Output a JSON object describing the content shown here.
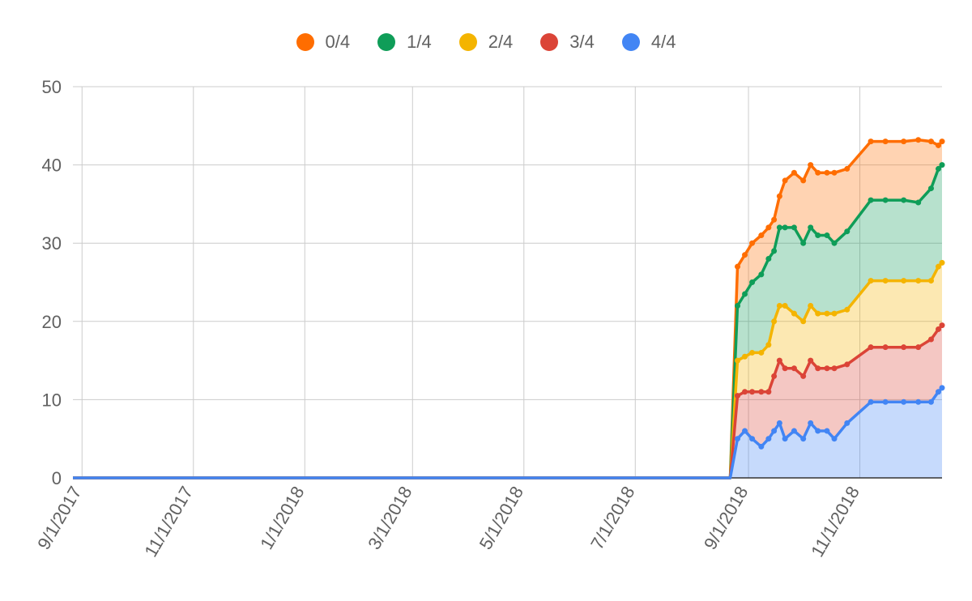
{
  "chart_data": {
    "type": "area",
    "stacked": true,
    "title": "",
    "xlabel": "",
    "ylabel": "",
    "ylim": [
      0,
      50
    ],
    "yticks": [
      0,
      10,
      20,
      30,
      40,
      50
    ],
    "xlim": [
      "2017-08-27",
      "2018-12-16"
    ],
    "xticks": [
      "2017-09-01",
      "2017-11-01",
      "2018-01-01",
      "2018-03-01",
      "2018-05-01",
      "2018-07-01",
      "2018-09-01",
      "2018-11-01"
    ],
    "xtick_labels": [
      "9/1/2017",
      "11/1/2017",
      "1/1/2018",
      "3/1/2018",
      "5/1/2018",
      "7/1/2018",
      "9/1/2018",
      "11/1/2018"
    ],
    "grid": true,
    "legend_position": "top",
    "x": [
      "2017-08-27",
      "2018-08-22",
      "2018-08-26",
      "2018-08-30",
      "2018-09-03",
      "2018-09-08",
      "2018-09-12",
      "2018-09-15",
      "2018-09-18",
      "2018-09-21",
      "2018-09-26",
      "2018-10-01",
      "2018-10-05",
      "2018-10-09",
      "2018-10-14",
      "2018-10-18",
      "2018-10-25",
      "2018-11-07",
      "2018-11-15",
      "2018-11-25",
      "2018-12-03",
      "2018-12-10",
      "2018-12-14",
      "2018-12-16"
    ],
    "series": [
      {
        "name": "4/4",
        "color": "#4285f4",
        "values": [
          0,
          0,
          5,
          6,
          5,
          4,
          5,
          6,
          7,
          5,
          6,
          5,
          7,
          6,
          6,
          5,
          7,
          9.7,
          9.7,
          9.7,
          9.7,
          9.7,
          11,
          11.5
        ]
      },
      {
        "name": "3/4",
        "color": "#db4437",
        "values": [
          0,
          0,
          5.5,
          5,
          6,
          7,
          6,
          7,
          8,
          9,
          8,
          8,
          8,
          8,
          8,
          9,
          7.5,
          7,
          7,
          7,
          7,
          8,
          8,
          8
        ]
      },
      {
        "name": "2/4",
        "color": "#f4b400",
        "values": [
          0,
          0,
          4.5,
          4.5,
          5,
          5,
          6,
          7,
          7,
          8,
          7,
          7,
          7,
          7,
          7,
          7,
          7,
          8.5,
          8.5,
          8.5,
          8.5,
          7.5,
          8,
          8
        ]
      },
      {
        "name": "1/4",
        "color": "#0f9d58",
        "values": [
          0,
          0,
          7,
          8,
          9,
          10,
          11,
          9,
          10,
          10,
          11,
          10,
          10,
          10,
          10,
          9,
          10,
          10.3,
          10.3,
          10.3,
          10,
          11.8,
          12.5,
          12.5
        ]
      },
      {
        "name": "0/4",
        "color": "#ff6d00",
        "values": [
          0,
          0,
          5,
          5,
          5,
          5,
          4,
          4,
          4,
          6,
          7,
          8,
          8,
          8,
          8,
          9,
          8,
          7.5,
          7.5,
          7.5,
          8,
          6,
          3,
          3
        ]
      }
    ]
  }
}
